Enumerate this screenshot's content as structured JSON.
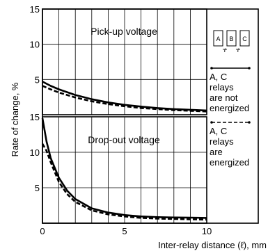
{
  "chart_data": [
    {
      "type": "line",
      "title": "Pick-up voltage",
      "xlabel": "Inter-relay distance (ℓ), mm",
      "ylabel": "Rate of change, %",
      "xlim": [
        0,
        10
      ],
      "ylim": [
        0,
        15
      ],
      "grid": true,
      "x_ticks": [
        0,
        5,
        10
      ],
      "y_ticks": [
        5,
        10,
        15
      ],
      "series": [
        {
          "name": "A, C relays are not energized",
          "style": "solid",
          "x": [
            0,
            0.5,
            1,
            2,
            3,
            4,
            5,
            6,
            7,
            8,
            9,
            10
          ],
          "values": [
            4.7,
            4.1,
            3.6,
            2.8,
            2.2,
            1.75,
            1.4,
            1.15,
            0.95,
            0.8,
            0.7,
            0.6
          ]
        },
        {
          "name": "A, C relays are energized",
          "style": "dashed",
          "x": [
            0,
            0.5,
            1,
            2,
            3,
            4,
            5,
            6,
            7,
            8,
            9,
            10
          ],
          "values": [
            4.1,
            3.6,
            3.15,
            2.45,
            1.9,
            1.5,
            1.2,
            0.95,
            0.8,
            0.65,
            0.55,
            0.45
          ]
        }
      ]
    },
    {
      "type": "line",
      "title": "Drop-out voltage",
      "xlabel": "Inter-relay distance (ℓ), mm",
      "ylabel": "Rate of change, %",
      "xlim": [
        0,
        10
      ],
      "ylim": [
        0,
        15
      ],
      "grid": true,
      "x_ticks": [
        0,
        5,
        10
      ],
      "y_ticks": [
        5,
        10,
        15
      ],
      "series": [
        {
          "name": "A, C relays are not energized",
          "style": "solid",
          "x": [
            0,
            0.25,
            0.5,
            1,
            1.5,
            2,
            3,
            4,
            5,
            6,
            7,
            8,
            9,
            10
          ],
          "values": [
            14.8,
            11.5,
            9.2,
            6.4,
            4.6,
            3.4,
            2.1,
            1.5,
            1.15,
            0.95,
            0.85,
            0.8,
            0.78,
            0.75
          ]
        },
        {
          "name": "A, C relays are energized",
          "style": "dashed",
          "x": [
            0,
            0.25,
            0.5,
            1,
            1.5,
            2,
            3,
            4,
            5,
            6,
            7,
            8,
            9,
            10
          ],
          "values": [
            11.2,
            10.2,
            8.6,
            5.8,
            4.1,
            3.0,
            1.8,
            1.25,
            0.95,
            0.75,
            0.65,
            0.6,
            0.55,
            0.5
          ]
        }
      ]
    }
  ],
  "legend": {
    "diagram_labels": [
      "A",
      "B",
      "C"
    ],
    "diagram_symbol": "ℓ",
    "solid_lines": [
      "A, C",
      "relays",
      "are not",
      "energized"
    ],
    "dashed_lines": [
      "A, C",
      "relays",
      "are",
      "energized"
    ]
  }
}
